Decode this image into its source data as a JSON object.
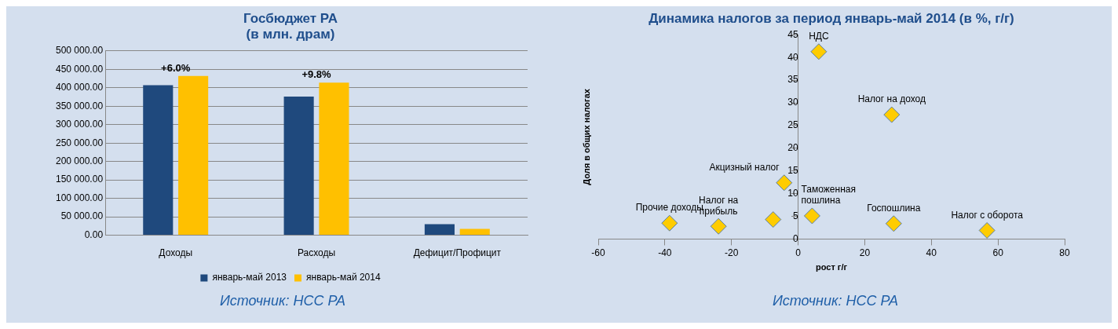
{
  "chart_data": [
    {
      "type": "bar",
      "title": "Госбюджет РА\n(в млн. драм)",
      "categories": [
        "Доходы",
        "Расходы",
        "Дефицит/Профицит"
      ],
      "series": [
        {
          "name": "январь-май 2013",
          "color": "#1f497d",
          "values": [
            407000,
            376000,
            30000
          ]
        },
        {
          "name": "январь-май 2014",
          "color": "#ffc000",
          "values": [
            432000,
            414000,
            17000
          ]
        }
      ],
      "ylim": [
        0,
        500000
      ],
      "yticks": [
        {
          "value": 0,
          "label": "0.00"
        },
        {
          "value": 50000,
          "label": "50 000.00"
        },
        {
          "value": 100000,
          "label": "100 000.00"
        },
        {
          "value": 150000,
          "label": "150 000.00"
        },
        {
          "value": 200000,
          "label": "200 000.00"
        },
        {
          "value": 250000,
          "label": "250 000.00"
        },
        {
          "value": 300000,
          "label": "300 000.00"
        },
        {
          "value": 350000,
          "label": "350 000.00"
        },
        {
          "value": 400000,
          "label": "400 000.00"
        },
        {
          "value": 450000,
          "label": "450 000.00"
        },
        {
          "value": 500000,
          "label": "500 000.00"
        }
      ],
      "grid": "y",
      "legend": "bottom",
      "annotations": [
        {
          "text": "+6.0%",
          "x": "Доходы",
          "y": 432000
        },
        {
          "text": "+9.8%",
          "x": "Расходы",
          "y": 414000
        },
        "Источник: НСС РА"
      ]
    },
    {
      "type": "scatter",
      "title": "Динамика налогов за период январь-май 2014 (в %, г/г)",
      "xlabel": "рост г/г",
      "ylabel": "Доля в общих налогах",
      "x": [
        6.2,
        28.1,
        -4.2,
        4.2,
        28.7,
        56.7,
        -38.6,
        -23.9,
        -7.5
      ],
      "series": [
        {
          "color": "#ffcc00",
          "values": [
            41.3,
            27.4,
            12.4,
            5.1,
            3.4,
            1.9,
            3.5,
            2.8,
            4.3
          ]
        }
      ],
      "marker": "diamond",
      "xlim": [
        -60,
        80
      ],
      "xticks": [
        -60,
        -40,
        -20,
        0,
        20,
        40,
        60,
        80
      ],
      "ylim": [
        0,
        45
      ],
      "yticks": [
        0,
        5,
        10,
        15,
        20,
        25,
        30,
        35,
        40,
        45
      ],
      "grid": false,
      "legend": false,
      "annotations": [
        {
          "text": "НДС",
          "x": 6.2,
          "y": 41.3
        },
        {
          "text": "Налог на доход",
          "x": 28.1,
          "y": 27.4
        },
        {
          "text": "Акцизный налог",
          "x": -4.2,
          "y": 12.4
        },
        {
          "text": "Таможенная пошлина",
          "x": 4.2,
          "y": 5.1
        },
        {
          "text": "Госпошлина",
          "x": 28.7,
          "y": 3.4
        },
        {
          "text": "Налог с оборота",
          "x": 56.7,
          "y": 1.9
        },
        {
          "text": "Прочие доходы",
          "x": -38.6,
          "y": 3.5
        },
        {
          "text": "Налог на прибыль",
          "x": -23.9,
          "y": 2.8
        },
        "Источник: НСС РА"
      ]
    }
  ]
}
